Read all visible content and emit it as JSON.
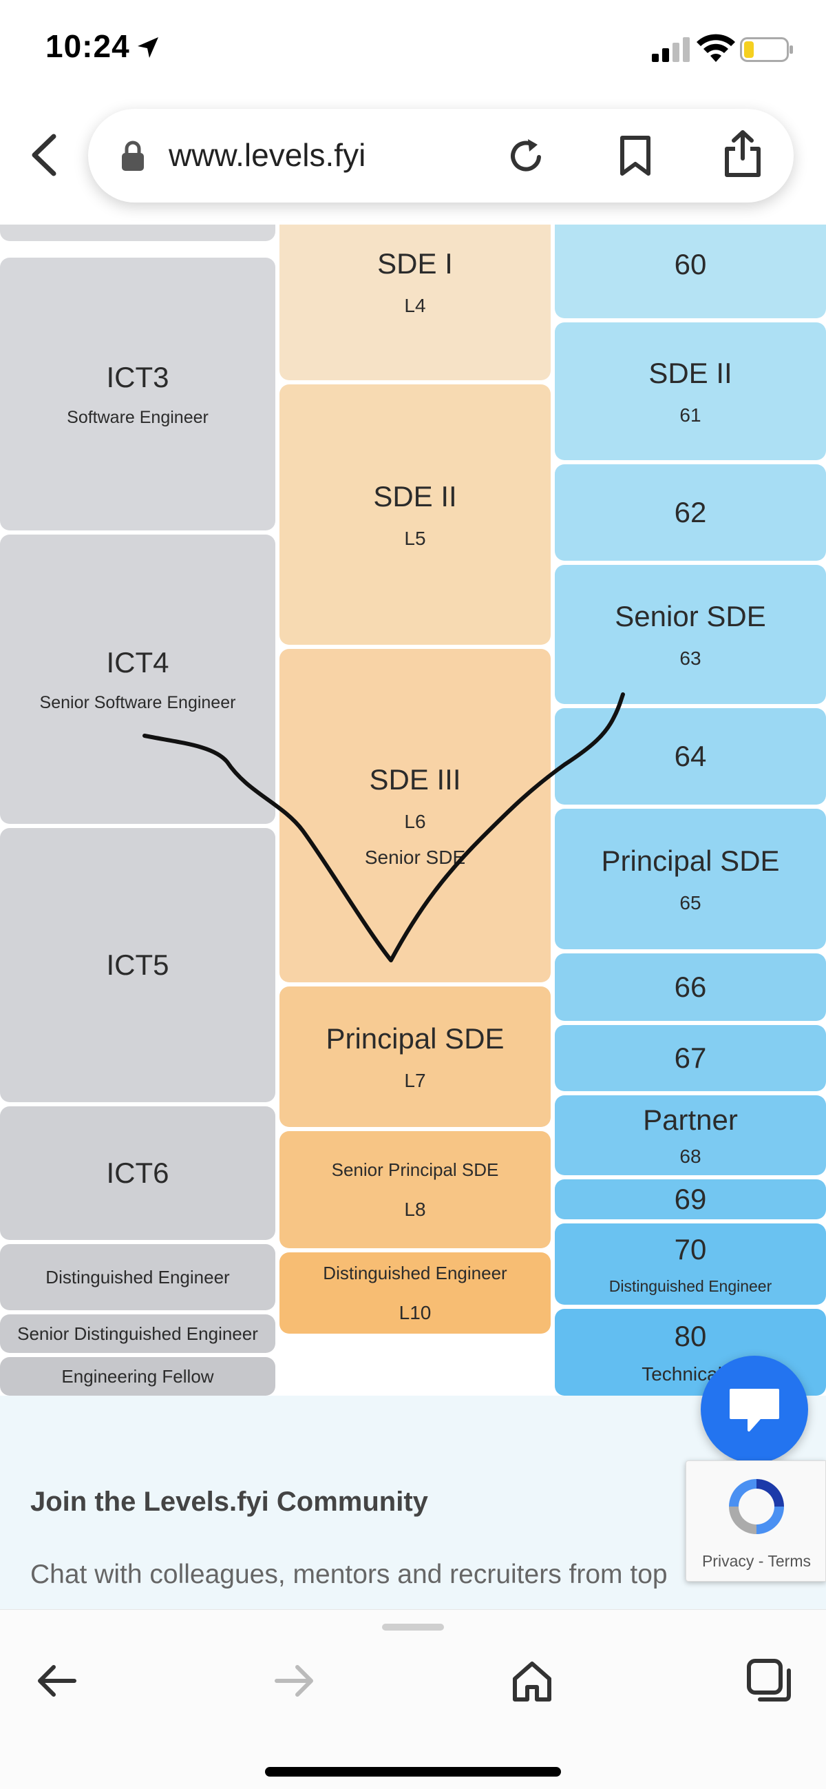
{
  "status_bar": {
    "time": "10:24"
  },
  "browser": {
    "url": "www.levels.fyi"
  },
  "levels": {
    "col_a": [
      {
        "title": "",
        "subtitle": ""
      },
      {
        "title": "ICT3",
        "subtitle": "Software Engineer"
      },
      {
        "title": "ICT4",
        "subtitle": "Senior Software Engineer"
      },
      {
        "title": "ICT5",
        "subtitle": ""
      },
      {
        "title": "ICT6",
        "subtitle": ""
      },
      {
        "title": "",
        "subtitle": "Distinguished Engineer"
      },
      {
        "title": "",
        "subtitle": "Senior Distinguished Engineer"
      },
      {
        "title": "",
        "subtitle": "Engineering Fellow"
      }
    ],
    "col_b": [
      {
        "title": "SDE I",
        "code": "L4",
        "extra": ""
      },
      {
        "title": "SDE II",
        "code": "L5",
        "extra": ""
      },
      {
        "title": "SDE III",
        "code": "L6",
        "extra": "Senior SDE"
      },
      {
        "title": "Principal SDE",
        "code": "L7",
        "extra": ""
      },
      {
        "title": "Senior Principal SDE",
        "code": "L8",
        "extra": ""
      },
      {
        "title": "Distinguished Engineer",
        "code": "L10",
        "extra": ""
      }
    ],
    "col_c": [
      {
        "title": "60",
        "sub": ""
      },
      {
        "title": "SDE II",
        "sub": "61"
      },
      {
        "title": "62",
        "sub": ""
      },
      {
        "title": "Senior SDE",
        "sub": "63"
      },
      {
        "title": "64",
        "sub": ""
      },
      {
        "title": "Principal SDE",
        "sub": "65"
      },
      {
        "title": "66",
        "sub": ""
      },
      {
        "title": "67",
        "sub": ""
      },
      {
        "title": "Partner",
        "sub": "68"
      },
      {
        "title": "69",
        "sub": ""
      },
      {
        "title": "70",
        "sub": "Distinguished Engineer"
      },
      {
        "title": "80",
        "sub": "Technical F"
      }
    ]
  },
  "community": {
    "title": "Join the Levels.fyi Community",
    "text": "Chat with colleagues, mentors and recruiters from top"
  },
  "recaptcha": {
    "label": "Privacy - Terms"
  },
  "colors": {
    "gray_cell": "#d6d7db",
    "orange_cell": "#f8d7a9",
    "blue_cell": "#a8dff3",
    "chat": "#2374f0"
  }
}
